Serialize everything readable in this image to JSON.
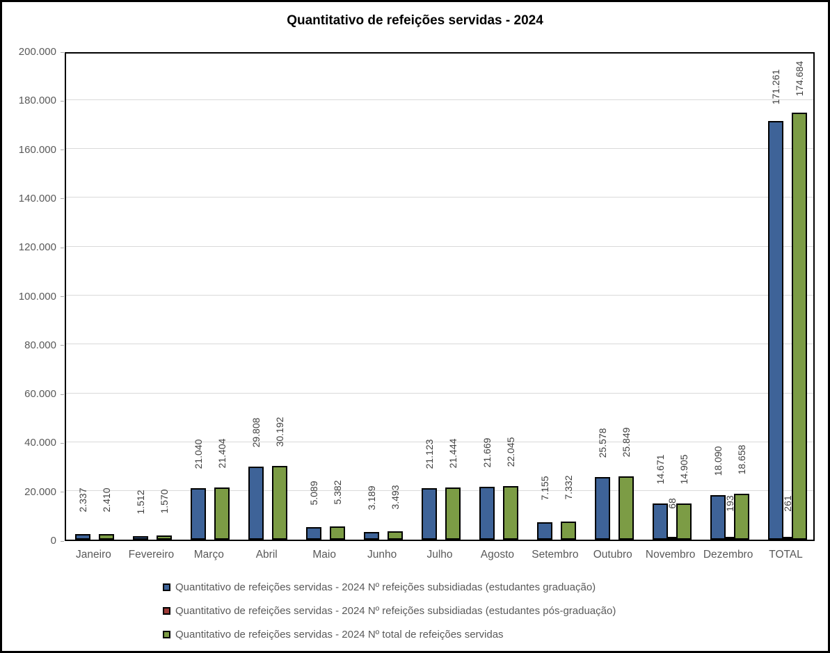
{
  "window": {
    "background": "#FFFFFF",
    "border_color": "#000000"
  },
  "chart_data": {
    "type": "bar",
    "title": "Quantitativo de refeições servidas - 2024",
    "categories": [
      "Janeiro",
      "Fevereiro",
      "Março",
      "Abril",
      "Maio",
      "Junho",
      "Julho",
      "Agosto",
      "Setembro",
      "Outubro",
      "Novembro",
      "Dezembro",
      "TOTAL"
    ],
    "series": [
      {
        "name": "Quantitativo de refeições servidas - 2024 Nº refeições subsidiadas (estudantes graduação)",
        "color": "#3E6398",
        "values": [
          2337,
          1512,
          21040,
          29808,
          5089,
          3189,
          21123,
          21669,
          7155,
          25578,
          14671,
          18090,
          171261
        ],
        "labels": [
          "2.337",
          "1.512",
          "21.040",
          "29.808",
          "5.089",
          "3.189",
          "21.123",
          "21.669",
          "7.155",
          "25.578",
          "14.671",
          "18.090",
          "171.261"
        ]
      },
      {
        "name": "Quantitativo de refeições servidas - 2024 Nº refeições subsidiadas (estudantes pós-graduação)",
        "color": "#9E3B38",
        "values": [
          null,
          null,
          null,
          null,
          null,
          null,
          null,
          null,
          null,
          null,
          68,
          193,
          261
        ],
        "labels": [
          "",
          "",
          "",
          "",
          "",
          "",
          "",
          "",
          "",
          "",
          "68",
          "193",
          "261"
        ]
      },
      {
        "name": "Quantitativo de refeições servidas - 2024 Nº total de refeições servidas",
        "color": "#7C9C45",
        "values": [
          2410,
          1570,
          21404,
          30192,
          5382,
          3493,
          21444,
          22045,
          7332,
          25849,
          14905,
          18658,
          174684
        ],
        "labels": [
          "2.410",
          "1.570",
          "21.404",
          "30.192",
          "5.382",
          "3.493",
          "21.444",
          "22.045",
          "7.332",
          "25.849",
          "14.905",
          "18.658",
          "174.684"
        ]
      }
    ],
    "ylim": [
      0,
      200000
    ],
    "ytick_step": 20000,
    "ytick_labels": [
      "0",
      "20.000",
      "40.000",
      "60.000",
      "80.000",
      "100.000",
      "120.000",
      "140.000",
      "160.000",
      "180.000",
      "200.000"
    ],
    "grid": true,
    "gridline_color": "#D9D9D9",
    "axis_text_color": "#595959",
    "data_label_color": "#404040",
    "legend_position": "bottom"
  }
}
